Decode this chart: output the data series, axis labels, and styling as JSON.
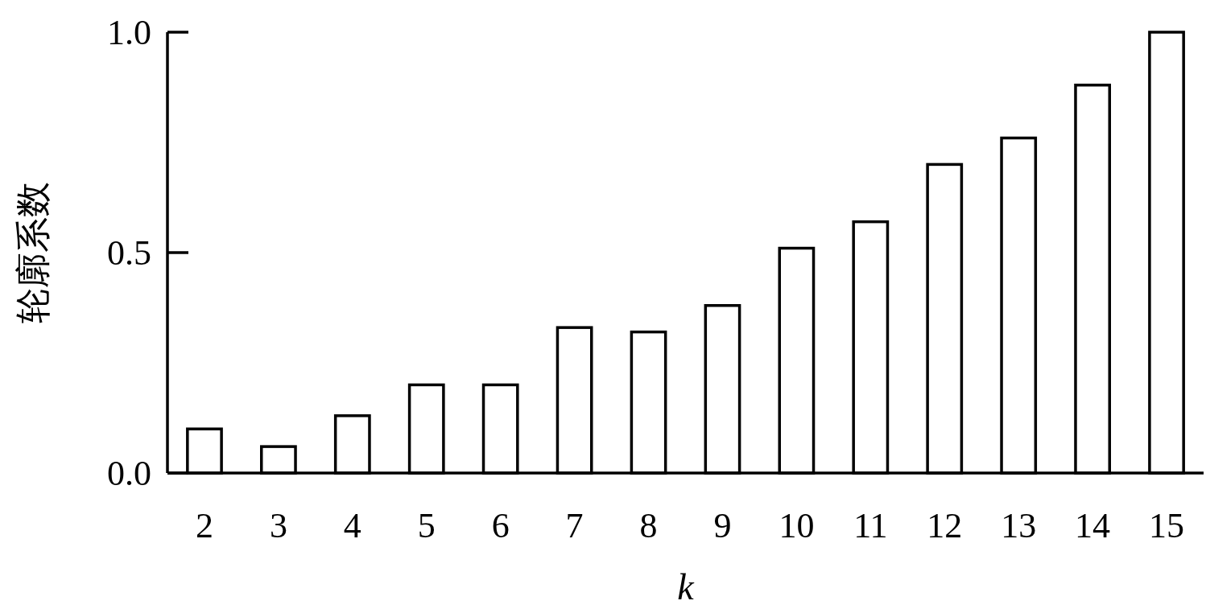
{
  "chart_data": {
    "type": "bar",
    "xlabel": "k",
    "ylabel": "轮廓系数",
    "categories": [
      "2",
      "3",
      "4",
      "5",
      "6",
      "7",
      "8",
      "9",
      "10",
      "11",
      "12",
      "13",
      "14",
      "15"
    ],
    "values": [
      0.1,
      0.06,
      0.13,
      0.2,
      0.2,
      0.33,
      0.32,
      0.38,
      0.51,
      0.57,
      0.7,
      0.76,
      0.88,
      1.0
    ],
    "color": "#ffffff",
    "ylim": [
      0,
      1
    ],
    "yticks": [
      {
        "value": 0,
        "label": "0.0"
      },
      {
        "value": 0.5,
        "label": "0.5"
      },
      {
        "value": 1,
        "label": "1.0"
      }
    ]
  }
}
